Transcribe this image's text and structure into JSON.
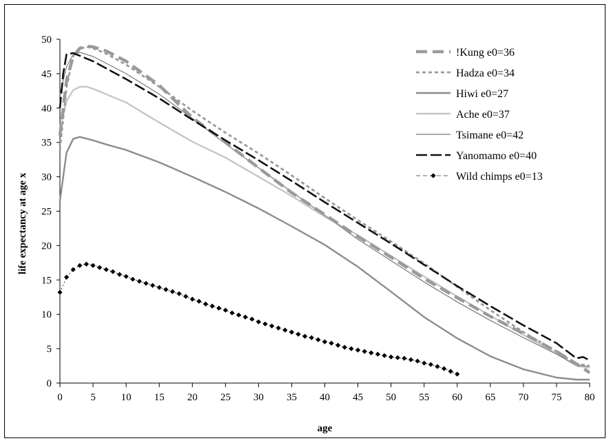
{
  "chart_data": {
    "type": "line",
    "title": "",
    "xlabel": "age",
    "ylabel": "life expectancy at age x",
    "xlim": [
      0,
      80
    ],
    "ylim": [
      0,
      50
    ],
    "xticks": [
      0,
      5,
      10,
      15,
      20,
      25,
      30,
      35,
      40,
      45,
      50,
      55,
      60,
      65,
      70,
      75,
      80
    ],
    "yticks": [
      0,
      5,
      10,
      15,
      20,
      25,
      30,
      35,
      40,
      45,
      50
    ],
    "grid": false,
    "legend_position": "top-right",
    "series": [
      {
        "name": "!Kung e0=36",
        "color": "#9a9a9a",
        "dash": "long-dash-thick",
        "points": [
          [
            0,
            36
          ],
          [
            1,
            44
          ],
          [
            2,
            47.5
          ],
          [
            3,
            48.7
          ],
          [
            4,
            49
          ],
          [
            5,
            48.9
          ],
          [
            7,
            48.3
          ],
          [
            10,
            46.8
          ],
          [
            15,
            43.3
          ],
          [
            20,
            38.6
          ],
          [
            25,
            35
          ],
          [
            30,
            31.3
          ],
          [
            35,
            27.7
          ],
          [
            40,
            24.5
          ],
          [
            45,
            21.3
          ],
          [
            50,
            18.3
          ],
          [
            55,
            15.2
          ],
          [
            60,
            12.4
          ],
          [
            65,
            9.7
          ],
          [
            70,
            7.2
          ],
          [
            75,
            4.6
          ],
          [
            78,
            2.8
          ],
          [
            80,
            1.5
          ]
        ]
      },
      {
        "name": "Hadza e0=34",
        "color": "#9a9a9a",
        "dash": "short-dash",
        "points": [
          [
            0,
            34
          ],
          [
            1,
            43
          ],
          [
            2,
            47.6
          ],
          [
            3,
            48.6
          ],
          [
            4,
            48.9
          ],
          [
            5,
            48.7
          ],
          [
            7,
            47.9
          ],
          [
            10,
            46.3
          ],
          [
            15,
            43.1
          ],
          [
            20,
            39.6
          ],
          [
            25,
            36.4
          ],
          [
            30,
            33.4
          ],
          [
            35,
            30.2
          ],
          [
            40,
            26.9
          ],
          [
            45,
            23.7
          ],
          [
            50,
            20.6
          ],
          [
            55,
            17.4
          ],
          [
            60,
            14
          ],
          [
            65,
            10.6
          ],
          [
            70,
            7.4
          ],
          [
            75,
            4.6
          ],
          [
            78,
            2.8
          ],
          [
            80,
            2.5
          ]
        ]
      },
      {
        "name": "Hiwi e0=27",
        "color": "#8c8c8c",
        "dash": "solid",
        "points": [
          [
            0,
            26.5
          ],
          [
            0.5,
            30
          ],
          [
            1,
            33.5
          ],
          [
            2,
            35.5
          ],
          [
            3,
            35.8
          ],
          [
            5,
            35.3
          ],
          [
            7,
            34.7
          ],
          [
            10,
            33.9
          ],
          [
            15,
            32.1
          ],
          [
            20,
            30
          ],
          [
            25,
            27.8
          ],
          [
            30,
            25.4
          ],
          [
            35,
            22.8
          ],
          [
            40,
            20.1
          ],
          [
            45,
            16.9
          ],
          [
            50,
            13.3
          ],
          [
            55,
            9.6
          ],
          [
            60,
            6.5
          ],
          [
            65,
            3.9
          ],
          [
            70,
            2
          ],
          [
            75,
            0.8
          ],
          [
            78,
            0.5
          ],
          [
            80,
            0.5
          ]
        ]
      },
      {
        "name": "Ache e0=37",
        "color": "#c6c6c6",
        "dash": "solid",
        "points": [
          [
            0,
            37
          ],
          [
            0.5,
            39
          ],
          [
            1,
            41
          ],
          [
            2,
            42.6
          ],
          [
            3,
            43.1
          ],
          [
            4,
            43.1
          ],
          [
            5,
            42.8
          ],
          [
            7,
            42
          ],
          [
            10,
            40.8
          ],
          [
            15,
            37.9
          ],
          [
            20,
            35.1
          ],
          [
            25,
            32.8
          ],
          [
            30,
            30
          ],
          [
            35,
            27.2
          ],
          [
            40,
            24.2
          ],
          [
            45,
            21.5
          ],
          [
            50,
            18.5
          ],
          [
            55,
            15.5
          ],
          [
            60,
            12.6
          ],
          [
            65,
            9.8
          ],
          [
            70,
            7
          ],
          [
            75,
            4.3
          ],
          [
            78,
            2.5
          ],
          [
            80,
            2.2
          ]
        ]
      },
      {
        "name": "Tsimane e0=42",
        "color": "#777777",
        "dash": "thin",
        "points": [
          [
            0,
            42
          ],
          [
            1,
            46
          ],
          [
            2,
            47.8
          ],
          [
            3,
            48.1
          ],
          [
            5,
            47.5
          ],
          [
            10,
            45
          ],
          [
            15,
            42
          ],
          [
            20,
            38.5
          ],
          [
            25,
            34.8
          ],
          [
            30,
            31.3
          ],
          [
            35,
            27.8
          ],
          [
            40,
            24.4
          ],
          [
            45,
            20.9
          ],
          [
            50,
            17.8
          ],
          [
            55,
            14.7
          ],
          [
            60,
            11.8
          ],
          [
            65,
            9.1
          ],
          [
            70,
            6.6
          ],
          [
            75,
            4.2
          ],
          [
            78,
            2.6
          ],
          [
            80,
            2.4
          ]
        ]
      },
      {
        "name": "Yanomamo e0=40",
        "color": "#111111",
        "dash": "long-dash",
        "points": [
          [
            0,
            40
          ],
          [
            0.5,
            45
          ],
          [
            1,
            47.8
          ],
          [
            2,
            48
          ],
          [
            5,
            46.8
          ],
          [
            10,
            44.2
          ],
          [
            15,
            41.4
          ],
          [
            20,
            38.3
          ],
          [
            25,
            35.3
          ],
          [
            30,
            32.4
          ],
          [
            35,
            29.4
          ],
          [
            40,
            26.3
          ],
          [
            45,
            23.3
          ],
          [
            50,
            20.3
          ],
          [
            55,
            17.2
          ],
          [
            60,
            14.1
          ],
          [
            65,
            11.2
          ],
          [
            70,
            8.4
          ],
          [
            75,
            5.8
          ],
          [
            78,
            3.6
          ],
          [
            79,
            3.8
          ],
          [
            80,
            3.3
          ]
        ]
      },
      {
        "name": "Wild chimps e0=13",
        "color": "#000000",
        "dash": "markers",
        "points": [
          [
            0,
            13.2
          ],
          [
            1,
            15.4
          ],
          [
            2,
            16.5
          ],
          [
            3,
            17.1
          ],
          [
            4,
            17.3
          ],
          [
            5,
            17.1
          ],
          [
            6,
            16.8
          ],
          [
            7,
            16.5
          ],
          [
            8,
            16.2
          ],
          [
            9,
            15.8
          ],
          [
            10,
            15.5
          ],
          [
            11,
            15.1
          ],
          [
            12,
            14.8
          ],
          [
            13,
            14.5
          ],
          [
            14,
            14.2
          ],
          [
            15,
            13.9
          ],
          [
            16,
            13.6
          ],
          [
            17,
            13.3
          ],
          [
            18,
            13
          ],
          [
            19,
            12.6
          ],
          [
            20,
            12.2
          ],
          [
            21,
            11.9
          ],
          [
            22,
            11.5
          ],
          [
            23,
            11.2
          ],
          [
            24,
            10.9
          ],
          [
            25,
            10.6
          ],
          [
            26,
            10.2
          ],
          [
            27,
            9.9
          ],
          [
            28,
            9.6
          ],
          [
            29,
            9.3
          ],
          [
            30,
            8.9
          ],
          [
            31,
            8.6
          ],
          [
            32,
            8.3
          ],
          [
            33,
            8
          ],
          [
            34,
            7.7
          ],
          [
            35,
            7.4
          ],
          [
            36,
            7.1
          ],
          [
            37,
            6.8
          ],
          [
            38,
            6.6
          ],
          [
            39,
            6.3
          ],
          [
            40,
            6
          ],
          [
            41,
            5.8
          ],
          [
            42,
            5.5
          ],
          [
            43,
            5.2
          ],
          [
            44,
            5
          ],
          [
            45,
            4.8
          ],
          [
            46,
            4.6
          ],
          [
            47,
            4.4
          ],
          [
            48,
            4.2
          ],
          [
            49,
            4
          ],
          [
            50,
            3.8
          ],
          [
            51,
            3.7
          ],
          [
            52,
            3.6
          ],
          [
            53,
            3.4
          ],
          [
            54,
            3.2
          ],
          [
            55,
            2.9
          ],
          [
            56,
            2.7
          ],
          [
            57,
            2.4
          ],
          [
            58,
            2.1
          ],
          [
            59,
            1.7
          ],
          [
            60,
            1.3
          ]
        ]
      }
    ]
  }
}
